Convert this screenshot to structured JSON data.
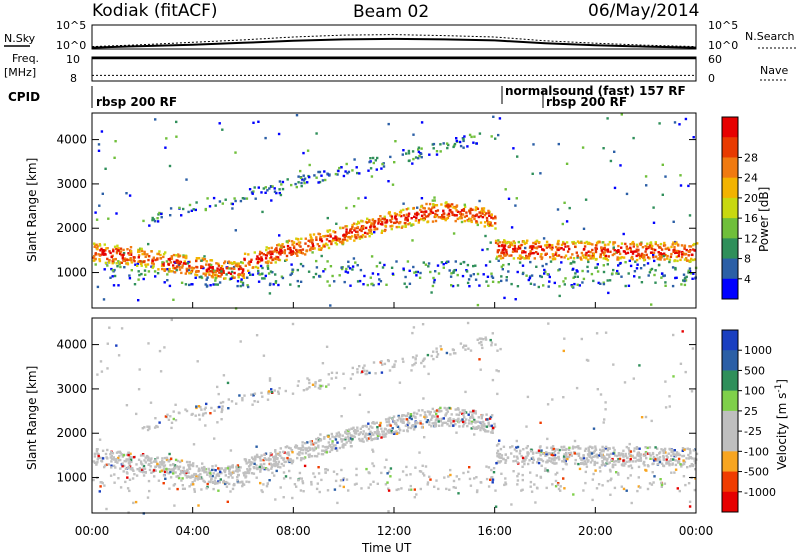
{
  "header": {
    "title": "Kodiak (fitACF)",
    "beam": "Beam 02",
    "date": "06/May/2014"
  },
  "colors": {
    "power": [
      "#0000ff",
      "#2b5fa6",
      "#2f8f5a",
      "#6fbf3a",
      "#c8d810",
      "#f3b300",
      "#f07a10",
      "#e83a00",
      "#e60000"
    ],
    "velocity": [
      "#e60000",
      "#f03c00",
      "#f7a520",
      "#bfbfbf",
      "#bfbfbf",
      "#7fd04a",
      "#2f8f5a",
      "#2b5fa6",
      "#1a3fc0"
    ]
  },
  "chart_data": [
    {
      "type": "line",
      "name": "top-strip-noise",
      "left_label": "N.Sky",
      "left_ticks": [
        "10^5",
        "10^0"
      ],
      "right_ticks": [
        "10^5",
        "10^0"
      ],
      "right_label": "N.Search",
      "x": [
        0,
        2,
        4,
        6,
        8,
        10,
        12,
        14,
        16,
        18,
        20,
        22,
        24
      ],
      "sky": [
        0.3,
        0.6,
        0.9,
        1.3,
        1.7,
        2.0,
        2.1,
        2.0,
        1.8,
        1.2,
        0.8,
        0.5,
        0.3
      ],
      "search": [
        0.5,
        0.9,
        1.4,
        1.9,
        2.5,
        2.9,
        3.0,
        2.8,
        2.5,
        1.7,
        1.2,
        0.8,
        0.5
      ]
    },
    {
      "type": "line",
      "name": "freq-strip",
      "left_label_1": "Freq.",
      "left_label_2": "[MHz]",
      "left_ticks": [
        "10",
        "8"
      ],
      "right_ticks": [
        "60",
        "0"
      ],
      "right_label": "Nave",
      "x": [
        0,
        24
      ],
      "freq": [
        9.9,
        9.9
      ],
      "nave": [
        14,
        14
      ]
    },
    {
      "type": "table",
      "name": "cpid-strip",
      "label": "CPID",
      "segments": [
        {
          "label": "rbsp 200 RF",
          "start": 0
        },
        {
          "label": "normalsound (fast) 157 RF",
          "start": 16.5
        },
        {
          "label": "rbsp 200 RF",
          "start": 18.2
        }
      ]
    },
    {
      "type": "heatmap",
      "name": "power",
      "ylabel": "Slant Range [km]",
      "yticks": [
        "1000",
        "2000",
        "3000",
        "4000"
      ],
      "ylim": [
        200,
        4600
      ],
      "colorbar_label": "Power [dB]",
      "colorbar_ticks": [
        "4",
        "8",
        "12",
        "16",
        "20",
        "24",
        "28"
      ],
      "vlim": [
        0,
        32
      ]
    },
    {
      "type": "heatmap",
      "name": "velocity",
      "ylabel": "Slant Range [km]",
      "yticks": [
        "1000",
        "2000",
        "3000",
        "4000"
      ],
      "ylim": [
        200,
        4600
      ],
      "colorbar_label": "Velocity [m s",
      "colorbar_label_sup": "-1",
      "colorbar_label_end": "]",
      "colorbar_ticks": [
        "1000",
        "500",
        "100",
        "25",
        "-25",
        "-100",
        "-500",
        "-1000"
      ],
      "xlabel": "Time UT",
      "xticks": [
        "00:00",
        "04:00",
        "08:00",
        "12:00",
        "16:00",
        "20:00",
        "00:00"
      ],
      "xlim": [
        0,
        24
      ]
    }
  ]
}
